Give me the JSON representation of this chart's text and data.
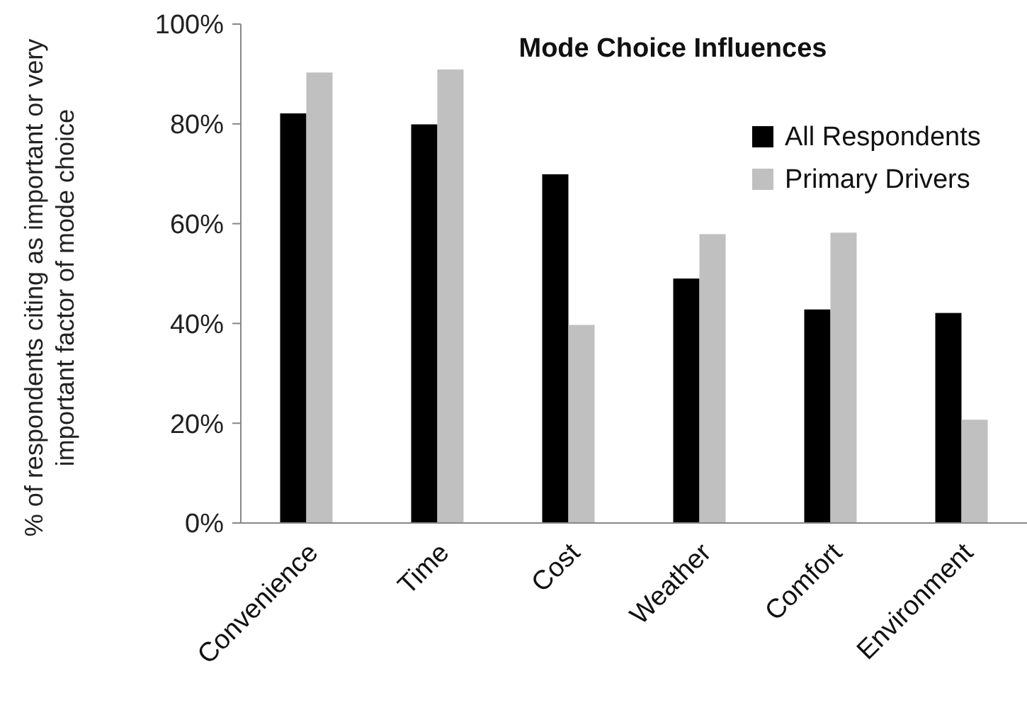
{
  "chart_data": {
    "type": "bar",
    "title": "Mode Choice Influences",
    "ylabel": "% of respondents citing as important or very important factor of mode choice",
    "categories": [
      "Convenience",
      "Time",
      "Cost",
      "Weather",
      "Comfort",
      "Environment"
    ],
    "series": [
      {
        "name": "All Respondents",
        "color": "#000000",
        "values": [
          82.1,
          79.9,
          69.9,
          49,
          42.8,
          42.1
        ]
      },
      {
        "name": "Primary Drivers",
        "color": "#c0c0c0",
        "values": [
          90.3,
          90.9,
          39.7,
          57.9,
          58.2,
          20.7
        ]
      }
    ],
    "ylim": [
      0,
      100
    ],
    "yticks": [
      {
        "value": 0,
        "label": "0%"
      },
      {
        "value": 20,
        "label": "20%"
      },
      {
        "value": 40,
        "label": "40%"
      },
      {
        "value": 60,
        "label": "60%"
      },
      {
        "value": 80,
        "label": "80%"
      },
      {
        "value": 100,
        "label": "100%"
      }
    ],
    "legend": "top right",
    "grid": false
  }
}
